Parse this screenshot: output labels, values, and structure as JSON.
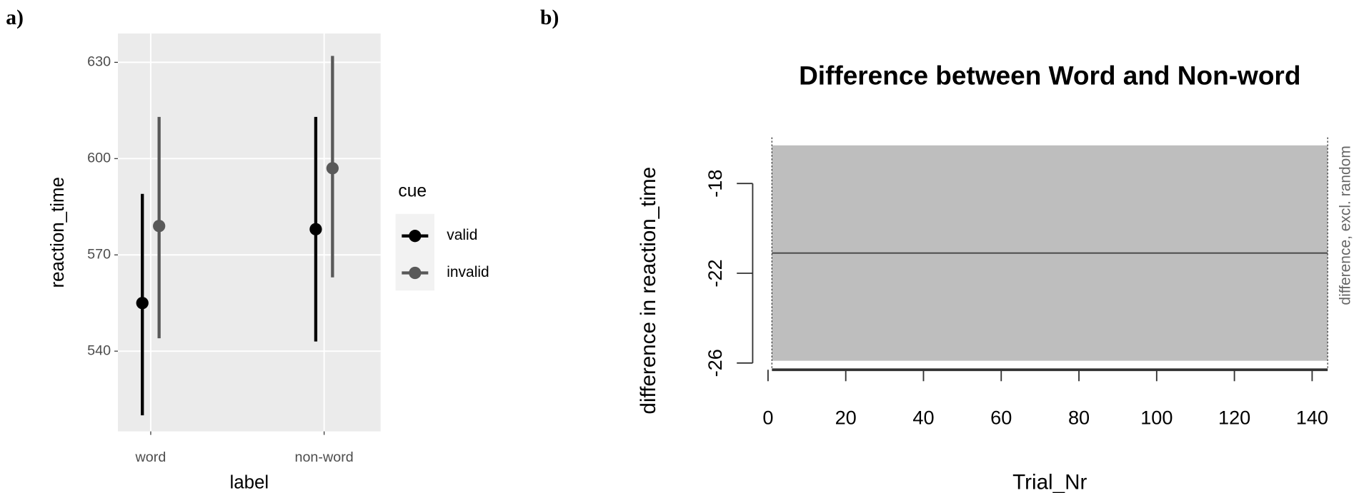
{
  "chart_data": [
    {
      "type": "pointrange",
      "panel_label": "a)",
      "x_label": "label",
      "y_label": "reaction_time",
      "categories": [
        "word",
        "non-word"
      ],
      "legend_title": "cue",
      "series": [
        {
          "name": "valid",
          "color": "#000000",
          "values": [
            555,
            578
          ],
          "lower": [
            520,
            543
          ],
          "upper": [
            589,
            613
          ]
        },
        {
          "name": "invalid",
          "color": "#595959",
          "values": [
            579,
            597
          ],
          "lower": [
            544,
            563
          ],
          "upper": [
            613,
            632
          ]
        }
      ],
      "ylim": [
        515,
        639
      ],
      "yticks": [
        540,
        570,
        600,
        630
      ],
      "grid": true
    },
    {
      "type": "band-line",
      "panel_label": "b)",
      "title": "Difference between Word and Non-word",
      "x_label": "Trial_Nr",
      "y_label": "difference in reaction_time",
      "y2_label": "difference, excl. random",
      "x": [
        1,
        144
      ],
      "values": [
        -21.1,
        -21.1
      ],
      "lower": [
        -25.9,
        -25.9
      ],
      "upper": [
        -16.3,
        -16.3
      ],
      "color": "#bebebe",
      "line_color": "#444444",
      "xlim": [
        -1,
        146
      ],
      "xticks": [
        0,
        20,
        40,
        60,
        80,
        100,
        120,
        140
      ],
      "ylim": [
        -26.3,
        -16.1
      ],
      "yticks": [
        -18,
        -22,
        -26
      ]
    }
  ]
}
